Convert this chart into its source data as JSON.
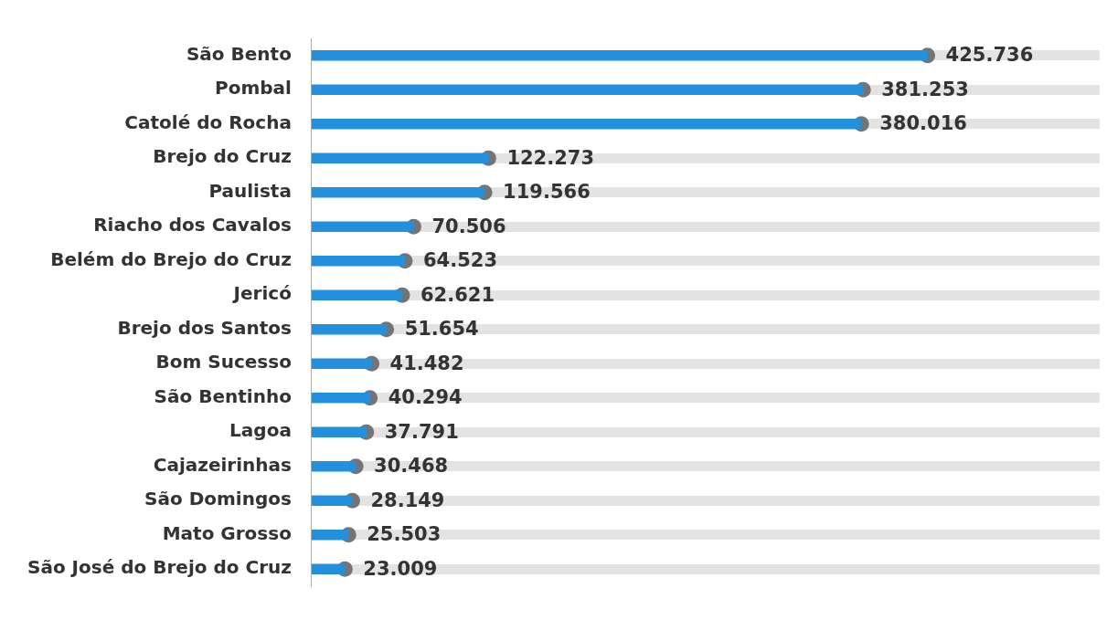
{
  "chart_data": {
    "type": "bar",
    "orientation": "horizontal",
    "categories": [
      "São Bento",
      "Pombal",
      "Catolé do Rocha",
      "Brejo do Cruz",
      "Paulista",
      "Riacho dos Cavalos",
      "Belém do Brejo do Cruz",
      "Jericó",
      "Brejo dos Santos",
      "Bom Sucesso",
      "São Bentinho",
      "Lagoa",
      "Cajazeirinhas",
      "São Domingos",
      "Mato Grosso",
      "São José do Brejo do Cruz"
    ],
    "series": [
      {
        "type": "bar",
        "color": "#2290dc",
        "values": [
          425736,
          381253,
          380016,
          122273,
          119566,
          70506,
          64523,
          62621,
          51654,
          41482,
          40294,
          37791,
          30468,
          28149,
          25503,
          23009
        ]
      },
      {
        "type": "scatter",
        "color": "#747474",
        "marker": "circle",
        "x": [
          "São Bento",
          "Pombal",
          "Catolé do Rocha",
          "Brejo do Cruz",
          "Paulista",
          "Riacho dos Cavalos",
          "Belém do Brejo do Cruz",
          "Jericó",
          "Brejo dos Santos",
          "Bom Sucesso",
          "São Bentinho",
          "Lagoa",
          "Cajazeirinhas",
          "São Domingos",
          "Mato Grosso",
          "São José do Brejo do Cruz"
        ],
        "values": [
          425736,
          381253,
          380016,
          122273,
          119566,
          70506,
          64523,
          62621,
          51654,
          41482,
          40294,
          37791,
          30468,
          28149,
          25503,
          23009
        ],
        "value_labels": [
          "425.736",
          "381.253",
          "380.016",
          "122.273",
          "119.566",
          "70.506",
          "64.523",
          "62.621",
          "51.654",
          "41.482",
          "40.294",
          "37.791",
          "30.468",
          "28.149",
          "25.503",
          "23.009"
        ]
      }
    ],
    "tick_labels": "y",
    "legend": false
  }
}
